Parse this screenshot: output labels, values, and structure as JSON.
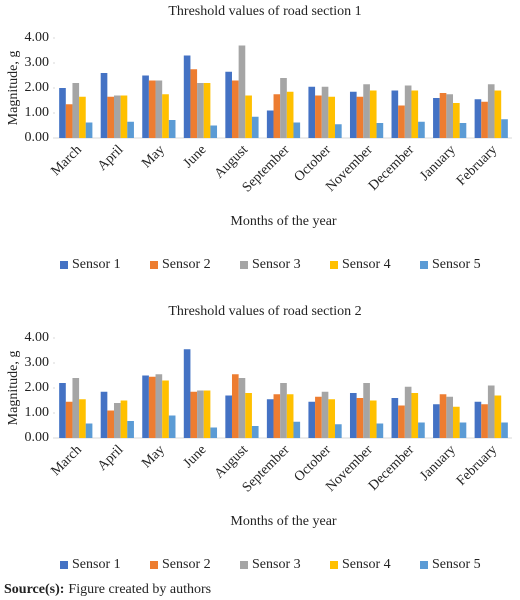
{
  "chart_data": [
    {
      "type": "bar",
      "title": "Threshold values of road section 1",
      "x_label": "Months of the year",
      "y_label": "Magnitude, g",
      "categories": [
        "March",
        "April",
        "May",
        "June",
        "August",
        "September",
        "October",
        "November",
        "December",
        "January",
        "February"
      ],
      "series": [
        {
          "name": "Sensor 1",
          "color": "#4472c4",
          "values": [
            2.0,
            2.6,
            2.5,
            3.3,
            2.65,
            1.1,
            2.05,
            1.85,
            1.9,
            1.6,
            1.55
          ]
        },
        {
          "name": "Sensor 2",
          "color": "#ed7d31",
          "values": [
            1.35,
            1.65,
            2.3,
            2.75,
            2.3,
            1.75,
            1.7,
            1.65,
            1.3,
            1.8,
            1.45
          ]
        },
        {
          "name": "Sensor 3",
          "color": "#a5a5a5",
          "values": [
            2.2,
            1.7,
            2.3,
            2.2,
            3.7,
            2.4,
            2.05,
            2.15,
            2.1,
            1.75,
            2.15
          ]
        },
        {
          "name": "Sensor 4",
          "color": "#ffc000",
          "values": [
            1.65,
            1.7,
            1.75,
            2.2,
            1.7,
            1.85,
            1.65,
            1.9,
            1.9,
            1.4,
            1.9
          ]
        },
        {
          "name": "Sensor 5",
          "color": "#5b9bd5",
          "values": [
            0.62,
            0.65,
            0.72,
            0.5,
            0.85,
            0.62,
            0.55,
            0.6,
            0.65,
            0.6,
            0.75
          ]
        }
      ],
      "ylim": [
        0,
        4
      ],
      "yticks": [
        {
          "value": 0,
          "label": "0.00"
        },
        {
          "value": 1,
          "label": "1.00"
        },
        {
          "value": 2,
          "label": "2.00"
        },
        {
          "value": 3,
          "label": "3.00"
        },
        {
          "value": 4,
          "label": "4.00"
        }
      ],
      "grid": false,
      "legend": "bottom"
    },
    {
      "type": "bar",
      "title": "Threshold values of road section 2",
      "x_label": "Months of the year",
      "y_label": "Magnitude, g",
      "categories": [
        "March",
        "April",
        "May",
        "June",
        "August",
        "September",
        "October",
        "November",
        "December",
        "January",
        "February"
      ],
      "series": [
        {
          "name": "Sensor 1",
          "color": "#4472c4",
          "values": [
            2.2,
            1.85,
            2.5,
            3.55,
            1.7,
            1.55,
            1.45,
            1.8,
            1.6,
            1.35,
            1.45
          ]
        },
        {
          "name": "Sensor 2",
          "color": "#ed7d31",
          "values": [
            1.45,
            1.1,
            2.45,
            1.85,
            2.55,
            1.75,
            1.65,
            1.6,
            1.3,
            1.75,
            1.35
          ]
        },
        {
          "name": "Sensor 3",
          "color": "#a5a5a5",
          "values": [
            2.4,
            1.4,
            2.55,
            1.9,
            2.4,
            2.2,
            1.85,
            2.2,
            2.05,
            1.65,
            2.1
          ]
        },
        {
          "name": "Sensor 4",
          "color": "#ffc000",
          "values": [
            1.55,
            1.5,
            2.3,
            1.9,
            1.8,
            1.75,
            1.55,
            1.5,
            1.8,
            1.25,
            1.7
          ]
        },
        {
          "name": "Sensor 5",
          "color": "#5b9bd5",
          "values": [
            0.58,
            0.68,
            0.9,
            0.42,
            0.48,
            0.65,
            0.55,
            0.58,
            0.62,
            0.62,
            0.62
          ]
        }
      ],
      "ylim": [
        0,
        4
      ],
      "yticks": [
        {
          "value": 0,
          "label": "0.00"
        },
        {
          "value": 1,
          "label": "1.00"
        },
        {
          "value": 2,
          "label": "2.00"
        },
        {
          "value": 3,
          "label": "3.00"
        },
        {
          "value": 4,
          "label": "4.00"
        }
      ],
      "grid": false,
      "legend": "bottom"
    }
  ],
  "source": {
    "label": "Source(s):",
    "text": "Figure created by authors"
  }
}
